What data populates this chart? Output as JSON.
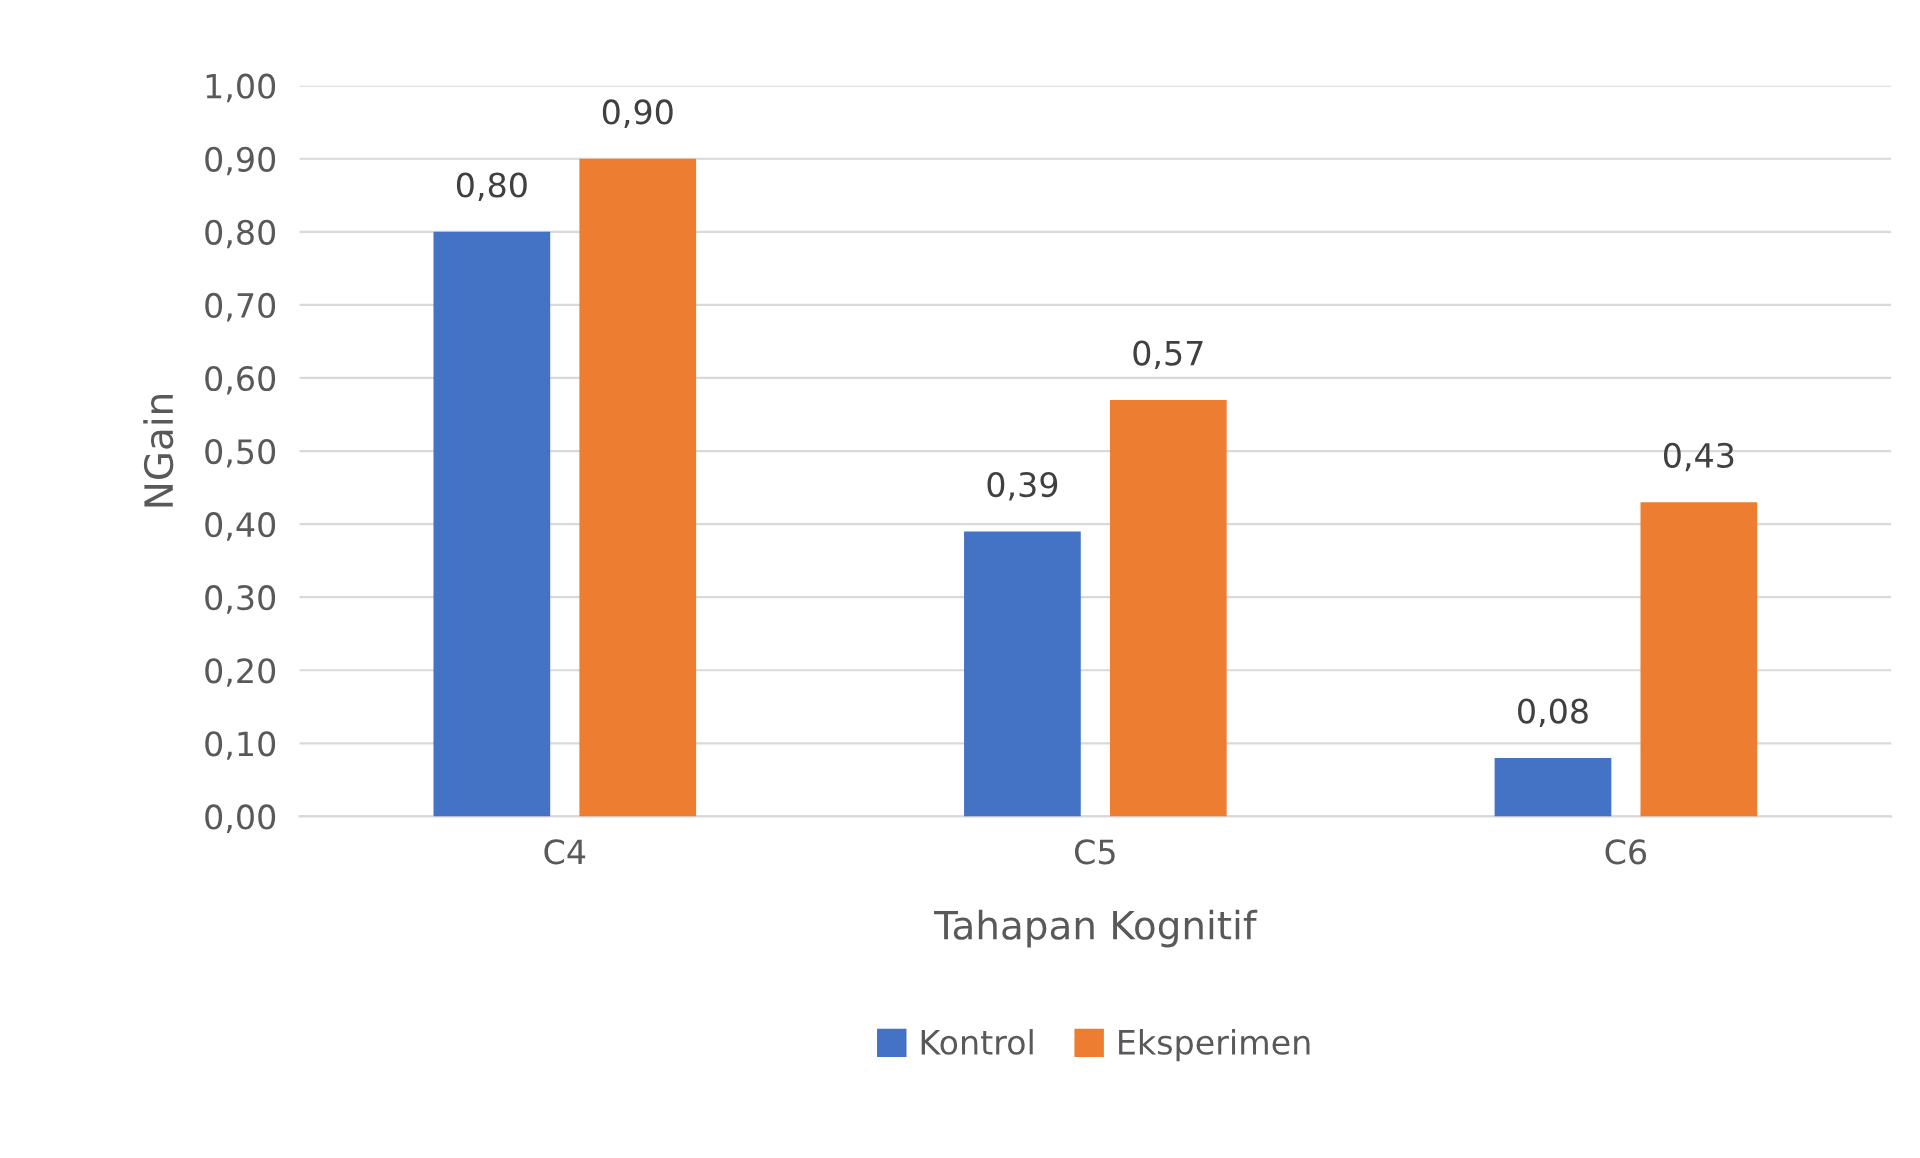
{
  "chart_data": {
    "type": "bar",
    "xlabel": "Tahapan Kognitif",
    "ylabel": "NGain",
    "categories": [
      "C4",
      "C5",
      "C6"
    ],
    "series": [
      {
        "name": "Kontrol",
        "color": "#4472c4",
        "values": [
          0.8,
          0.39,
          0.08
        ],
        "value_labels": [
          "0,80",
          "0,39",
          "0,08"
        ]
      },
      {
        "name": "Eksperimen",
        "color": "#ed7d31",
        "values": [
          0.9,
          0.57,
          0.43
        ],
        "value_labels": [
          "0,90",
          "0,57",
          "0,43"
        ]
      }
    ],
    "ylim": [
      0,
      1
    ],
    "yticks": [
      {
        "value": 0,
        "label": "0,00"
      },
      {
        "value": 0.1,
        "label": "0,10"
      },
      {
        "value": 0.2,
        "label": "0,20"
      },
      {
        "value": 0.3,
        "label": "0,30"
      },
      {
        "value": 0.4,
        "label": "0,40"
      },
      {
        "value": 0.5,
        "label": "0,50"
      },
      {
        "value": 0.6,
        "label": "0,60"
      },
      {
        "value": 0.7,
        "label": "0,70"
      },
      {
        "value": 0.8,
        "label": "0,80"
      },
      {
        "value": 0.9,
        "label": "0,90"
      },
      {
        "value": 1.0,
        "label": "1,00"
      }
    ],
    "grid": "y",
    "legend": "bottom"
  }
}
